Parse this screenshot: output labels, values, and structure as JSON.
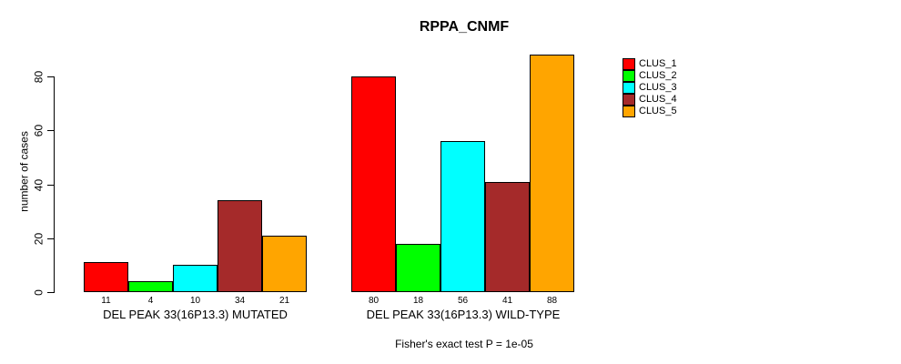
{
  "title": "RPPA_CNMF",
  "y_axis": {
    "label": "number of cases",
    "ticks": [
      0,
      20,
      40,
      60,
      80
    ]
  },
  "caption": "Fisher's exact test P = 1e-05",
  "chart_data": {
    "type": "bar",
    "title": "RPPA_CNMF",
    "xlabel": "",
    "ylabel": "number of cases",
    "ylim": [
      0,
      88
    ],
    "grid": false,
    "legend_position": "right",
    "categories": [
      "DEL PEAK 33(16P13.3) MUTATED",
      "DEL PEAK 33(16P13.3) WILD-TYPE"
    ],
    "series": [
      {
        "name": "CLUS_1",
        "color": "#FF0000",
        "values": [
          11,
          80
        ]
      },
      {
        "name": "CLUS_2",
        "color": "#00FF00",
        "values": [
          4,
          18
        ]
      },
      {
        "name": "CLUS_3",
        "color": "#00FFFF",
        "values": [
          10,
          56
        ]
      },
      {
        "name": "CLUS_4",
        "color": "#A52A2A",
        "values": [
          34,
          41
        ]
      },
      {
        "name": "CLUS_5",
        "color": "#FFA500",
        "values": [
          21,
          88
        ]
      }
    ],
    "groups": [
      {
        "label": "DEL PEAK 33(16P13.3) MUTATED",
        "values": [
          11,
          4,
          10,
          34,
          21
        ]
      },
      {
        "label": "DEL PEAK 33(16P13.3) WILD-TYPE",
        "values": [
          80,
          18,
          56,
          41,
          88
        ]
      }
    ],
    "bar_value_labels": true,
    "annotation": "Fisher's exact test P = 1e-05"
  }
}
